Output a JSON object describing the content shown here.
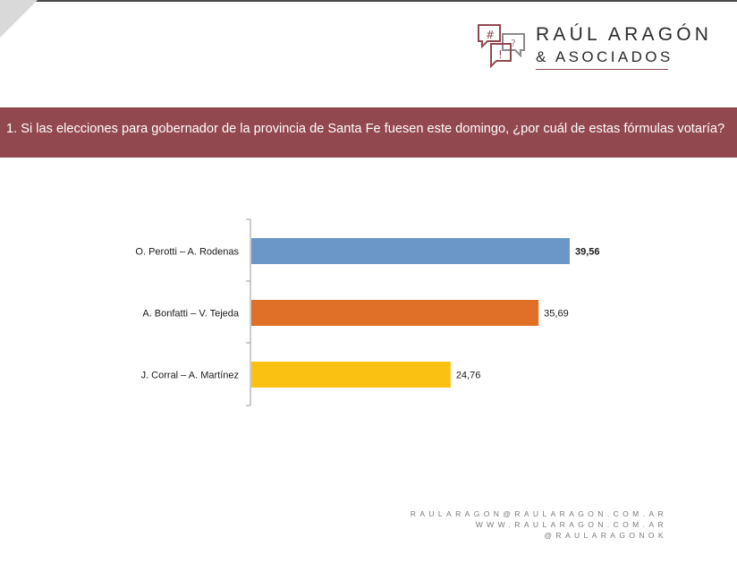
{
  "header": {
    "brand_name": "RAÚL ARAGÓN",
    "brand_sub": "& ASOCIADOS",
    "icon_glyphs": [
      "#",
      "?",
      "!"
    ]
  },
  "question": "1. Si las elecciones para gobernador de la provincia de Santa Fe fuesen este domingo, ¿por cuál de estas fórmulas votaría?",
  "chart_data": {
    "type": "bar",
    "orientation": "horizontal",
    "categories": [
      "O. Perotti – A. Rodenas",
      "A. Bonfatti – V. Tejeda",
      "J. Corral – A. Martínez"
    ],
    "values": [
      39.56,
      35.69,
      24.76
    ],
    "value_labels": [
      "39,56",
      "35,69",
      "24,76"
    ],
    "colors": [
      "#6a96c8",
      "#e07028",
      "#fbc112"
    ],
    "xlim": [
      0,
      40
    ],
    "grid": false,
    "legend": false,
    "title": "",
    "xlabel": "",
    "ylabel": ""
  },
  "footer": {
    "email": "RAULARAGON@RAULARAGON.COM.AR",
    "website": "WWW.RAULARAGON.COM.AR",
    "handle": "@RAULARAGONOK"
  }
}
